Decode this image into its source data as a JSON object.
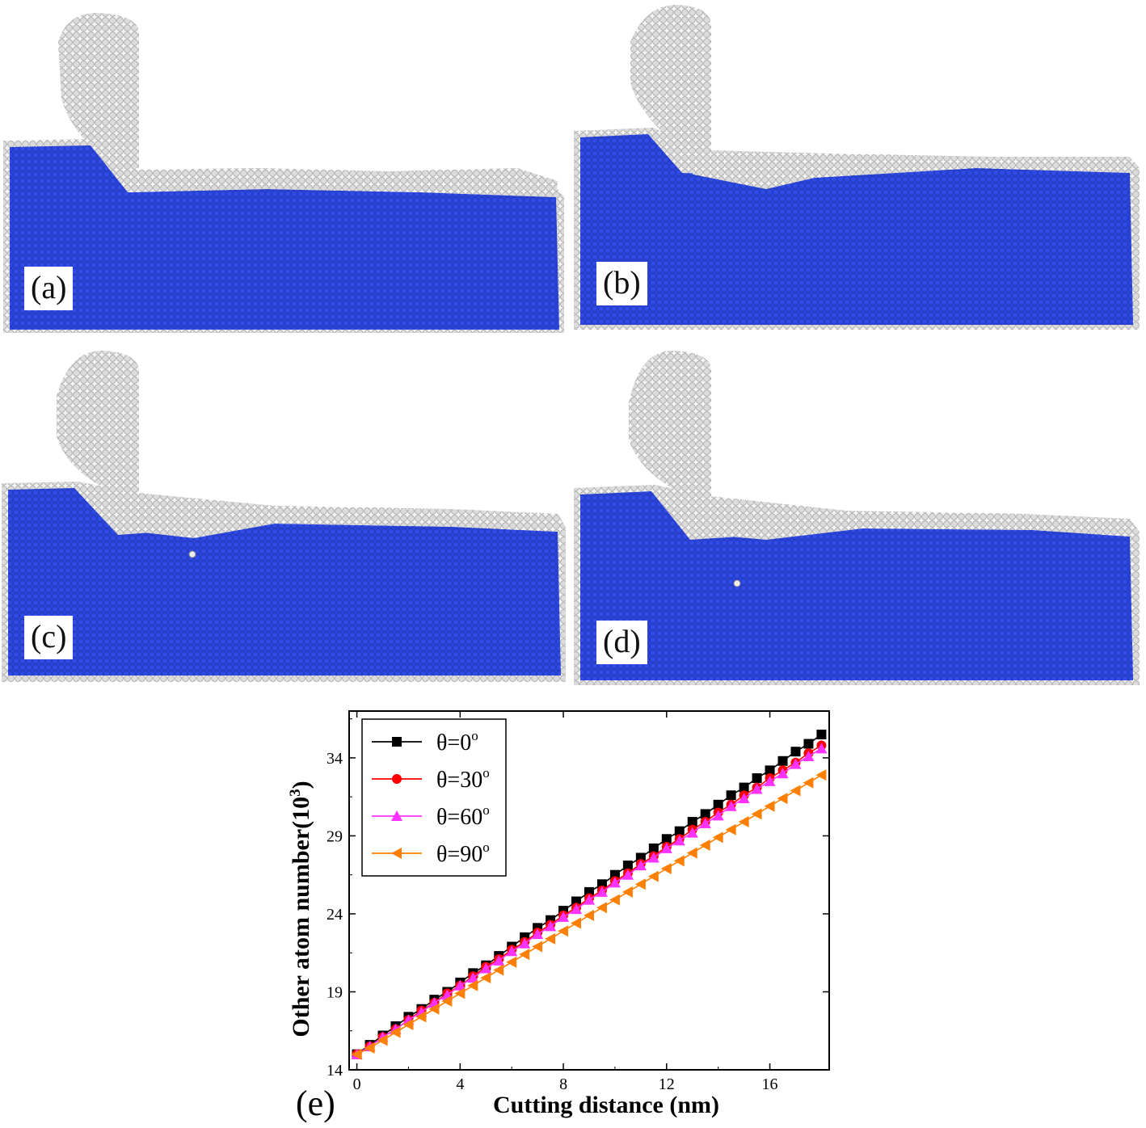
{
  "panels": [
    {
      "label": "(a)"
    },
    {
      "label": "(b)"
    },
    {
      "label": "(c)"
    },
    {
      "label": "(d)"
    }
  ],
  "colors": {
    "substrate": "#2a44d6",
    "atoms": "#d8d8d8",
    "atom_outline": "#9a9a9a"
  },
  "chart_data": {
    "type": "line",
    "label": "(e)",
    "xlabel": "Cutting distance (nm)",
    "ylabel_prefix": "Other atom number(10",
    "ylabel_exp": "3",
    "ylabel_suffix": ")",
    "xlim": [
      -0.3,
      18.3
    ],
    "ylim": [
      14,
      37
    ],
    "xticks": [
      0,
      4,
      8,
      12,
      16
    ],
    "yticks": [
      14,
      19,
      24,
      29,
      34
    ],
    "grid": false,
    "legend_position": "top-left",
    "x": [
      0,
      0.5,
      1,
      1.5,
      2,
      2.5,
      3,
      3.5,
      4,
      4.5,
      5,
      5.5,
      6,
      6.5,
      7,
      7.5,
      8,
      8.5,
      9,
      9.5,
      10,
      10.5,
      11,
      11.5,
      12,
      12.5,
      13,
      13.5,
      14,
      14.5,
      15,
      15.5,
      16,
      16.5,
      17,
      17.5,
      18
    ],
    "series": [
      {
        "name": "θ=0",
        "name_sup": "o",
        "color": "#000000",
        "marker": "square",
        "values": [
          15.0,
          15.6,
          16.2,
          16.8,
          17.4,
          17.9,
          18.5,
          19.0,
          19.6,
          20.2,
          20.7,
          21.3,
          21.9,
          22.5,
          23.1,
          23.6,
          24.2,
          24.8,
          25.4,
          25.9,
          26.5,
          27.1,
          27.6,
          28.2,
          28.8,
          29.3,
          29.9,
          30.4,
          31.0,
          31.6,
          32.1,
          32.7,
          33.2,
          33.8,
          34.4,
          34.9,
          35.5
        ]
      },
      {
        "name": "θ=30",
        "name_sup": "o",
        "color": "#ff0000",
        "marker": "circle",
        "values": [
          15.0,
          15.5,
          16.1,
          16.6,
          17.2,
          17.8,
          18.3,
          18.9,
          19.4,
          20.0,
          20.6,
          21.1,
          21.7,
          22.2,
          22.8,
          23.3,
          23.9,
          24.4,
          25.0,
          25.5,
          26.1,
          26.6,
          27.2,
          27.7,
          28.3,
          28.8,
          29.4,
          29.9,
          30.5,
          31.0,
          31.6,
          32.1,
          32.7,
          33.2,
          33.7,
          34.3,
          34.8
        ]
      },
      {
        "name": "θ=60",
        "name_sup": "o",
        "color": "#ff33ff",
        "marker": "triangle-up",
        "values": [
          15.0,
          15.5,
          16.1,
          16.6,
          17.2,
          17.7,
          18.3,
          18.8,
          19.4,
          19.9,
          20.5,
          21.0,
          21.6,
          22.1,
          22.7,
          23.2,
          23.8,
          24.3,
          24.9,
          25.4,
          26.0,
          26.5,
          27.1,
          27.6,
          28.2,
          28.7,
          29.2,
          29.8,
          30.3,
          30.9,
          31.4,
          32.0,
          32.5,
          33.0,
          33.6,
          34.1,
          34.6
        ]
      },
      {
        "name": "θ=90",
        "name_sup": "o",
        "color": "#ff8000",
        "marker": "triangle-left",
        "values": [
          15.0,
          15.4,
          15.9,
          16.4,
          16.9,
          17.4,
          17.9,
          18.4,
          18.9,
          19.4,
          19.9,
          20.4,
          20.9,
          21.4,
          21.9,
          22.4,
          22.9,
          23.4,
          23.9,
          24.4,
          24.9,
          25.4,
          25.9,
          26.4,
          26.9,
          27.4,
          27.9,
          28.4,
          28.9,
          29.4,
          29.9,
          30.4,
          30.9,
          31.4,
          31.9,
          32.4,
          32.9
        ]
      }
    ]
  }
}
